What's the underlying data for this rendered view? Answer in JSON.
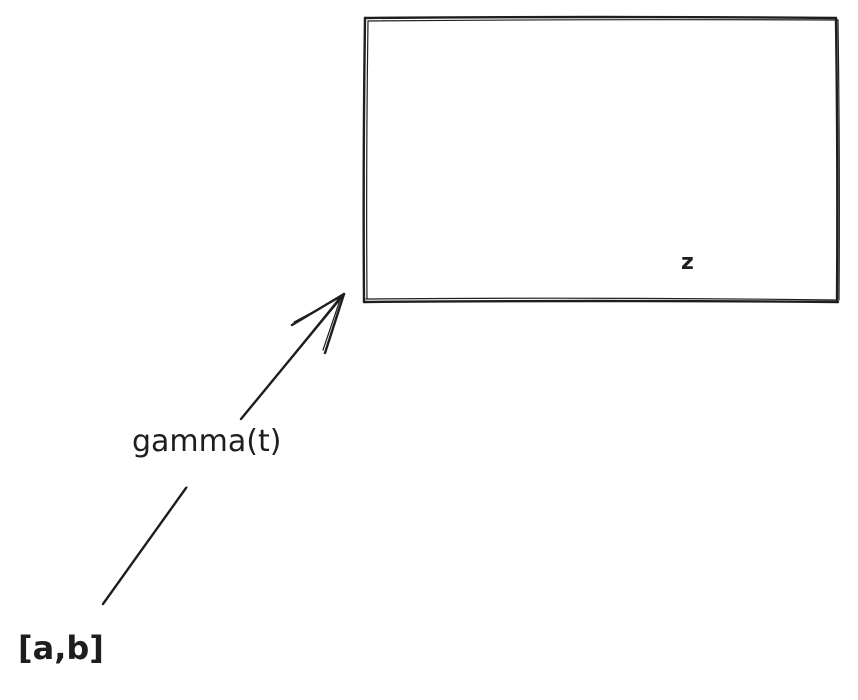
{
  "diagram": {
    "interval_label": "[a,b]",
    "curve_label": "gamma(t)",
    "region_label": "z",
    "stroke_color": "#1e1e1e",
    "background_color": "#ffffff"
  }
}
